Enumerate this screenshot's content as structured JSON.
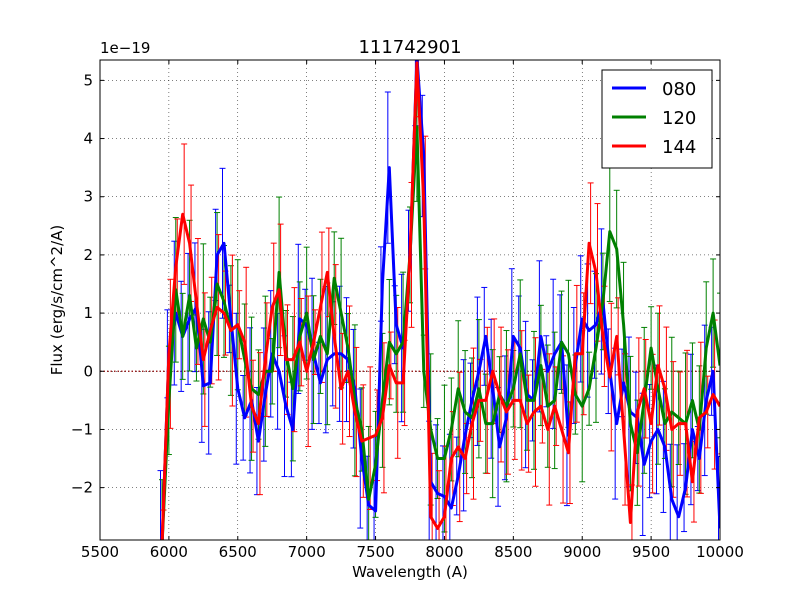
{
  "chart_data": {
    "type": "line",
    "title": "111742901",
    "xlabel": "Wavelength (A)",
    "ylabel": "Flux (erg/s/cm^2/A)",
    "offset_text": "1e−19",
    "xlim": [
      5500,
      10000
    ],
    "ylim": [
      -2.9,
      5.35
    ],
    "xticks": [
      5500,
      6000,
      6500,
      7000,
      7500,
      8000,
      8500,
      9000,
      9500,
      10000
    ],
    "yticks": [
      -2,
      -1,
      0,
      1,
      2,
      3,
      4,
      5
    ],
    "grid": true,
    "legend_position": "top-right",
    "reference_line": {
      "y": 0,
      "color": "#8b0000",
      "style": "dotted"
    },
    "series": [
      {
        "name": "080",
        "color": "#0000ff",
        "x": [
          5950,
          6000,
          6050,
          6100,
          6150,
          6200,
          6250,
          6300,
          6350,
          6400,
          6450,
          6500,
          6550,
          6600,
          6650,
          6700,
          6750,
          6800,
          6850,
          6900,
          6950,
          7000,
          7050,
          7100,
          7150,
          7200,
          7250,
          7300,
          7350,
          7400,
          7450,
          7500,
          7550,
          7600,
          7650,
          7700,
          7750,
          7800,
          7850,
          7900,
          7950,
          8000,
          8050,
          8100,
          8150,
          8200,
          8250,
          8300,
          8350,
          8400,
          8450,
          8500,
          8550,
          8600,
          8650,
          8700,
          8750,
          8800,
          8850,
          8900,
          8950,
          9000,
          9050,
          9100,
          9150,
          9200,
          9250,
          9300,
          9350,
          9400,
          9450,
          9500,
          9550,
          9600,
          9650,
          9700,
          9750,
          9800,
          9850,
          9900,
          9950,
          10000
        ],
        "y": [
          -3.0,
          0.3,
          1.0,
          0.6,
          0.9,
          1.1,
          -0.25,
          -0.2,
          2.0,
          2.2,
          0.9,
          -0.3,
          -0.8,
          -0.5,
          -1.2,
          -0.4,
          0.3,
          0.0,
          -0.6,
          -1.0,
          0.9,
          0.8,
          0.3,
          -0.2,
          0.2,
          0.3,
          0.3,
          0.2,
          -0.3,
          -1.5,
          -2.3,
          -2.4,
          1.5,
          3.5,
          0.8,
          0.4,
          1.9,
          5.4,
          3.7,
          -1.9,
          -2.1,
          -2.15,
          -2.35,
          -1.8,
          -1.1,
          -0.5,
          0.0,
          0.6,
          -0.3,
          -1.3,
          -0.8,
          0.6,
          0.4,
          -0.4,
          -0.5,
          0.6,
          0.0,
          0.3,
          0.5,
          -1.1,
          0.1,
          0.9,
          0.7,
          0.8,
          1.2,
          0.0,
          -0.9,
          -0.2,
          -0.7,
          -0.8,
          -1.6,
          -1.2,
          -1.0,
          -1.3,
          -2.2,
          -2.5,
          -2.0,
          -1.0,
          -1.5,
          -0.5,
          0.0,
          -2.7
        ]
      },
      {
        "name": "120",
        "color": "#008000",
        "x": [
          5950,
          6000,
          6050,
          6100,
          6150,
          6200,
          6250,
          6300,
          6350,
          6400,
          6450,
          6500,
          6550,
          6600,
          6650,
          6700,
          6750,
          6800,
          6850,
          6900,
          6950,
          7000,
          7050,
          7100,
          7150,
          7200,
          7250,
          7300,
          7350,
          7400,
          7450,
          7500,
          7550,
          7600,
          7650,
          7700,
          7750,
          7800,
          7850,
          7900,
          7950,
          8000,
          8050,
          8100,
          8150,
          8200,
          8250,
          8300,
          8350,
          8400,
          8450,
          8500,
          8550,
          8600,
          8650,
          8700,
          8750,
          8800,
          8850,
          8900,
          8950,
          9000,
          9050,
          9100,
          9150,
          9200,
          9250,
          9300,
          9350,
          9400,
          9450,
          9500,
          9550,
          9600,
          9650,
          9700,
          9750,
          9800,
          9850,
          9900,
          9950,
          10000
        ],
        "y": [
          -3.0,
          -0.5,
          1.4,
          0.6,
          1.3,
          0.4,
          0.9,
          0.5,
          1.5,
          1.2,
          0.7,
          0.8,
          0.2,
          -0.3,
          -0.4,
          0.0,
          0.0,
          1.7,
          0.3,
          -0.3,
          0.6,
          1.0,
          0.2,
          0.6,
          0.3,
          1.6,
          1.0,
          0.4,
          -0.5,
          -1.0,
          -2.2,
          -1.6,
          -0.5,
          0.5,
          0.3,
          0.5,
          2.0,
          4.2,
          0.0,
          -1.0,
          -1.5,
          -1.5,
          -1.0,
          -0.3,
          -0.7,
          -0.8,
          -0.3,
          -0.9,
          -0.9,
          -0.4,
          -0.6,
          -0.3,
          0.3,
          -0.5,
          -0.5,
          0.1,
          -0.6,
          -0.5,
          0.5,
          0.3,
          -0.4,
          -0.6,
          -0.3,
          0.4,
          1.2,
          2.4,
          2.1,
          0.8,
          -0.9,
          -1.4,
          -0.5,
          0.4,
          -0.3,
          -0.9,
          -0.7,
          -0.8,
          -0.9,
          -0.5,
          -1.0,
          0.4,
          1.0,
          0.1
        ]
      },
      {
        "name": "144",
        "color": "#ff0000",
        "x": [
          5950,
          6000,
          6050,
          6100,
          6150,
          6200,
          6250,
          6300,
          6350,
          6400,
          6450,
          6500,
          6550,
          6600,
          6650,
          6700,
          6750,
          6800,
          6850,
          6900,
          6950,
          7000,
          7050,
          7100,
          7150,
          7200,
          7250,
          7300,
          7350,
          7400,
          7450,
          7500,
          7550,
          7600,
          7650,
          7700,
          7750,
          7800,
          7850,
          7900,
          7950,
          8000,
          8050,
          8100,
          8150,
          8200,
          8250,
          8300,
          8350,
          8400,
          8450,
          8500,
          8550,
          8600,
          8650,
          8700,
          8750,
          8800,
          8850,
          8900,
          8950,
          9000,
          9050,
          9100,
          9150,
          9200,
          9250,
          9300,
          9350,
          9400,
          9450,
          9500,
          9550,
          9600,
          9650,
          9700,
          9750,
          9800,
          9850,
          9900,
          9950,
          10000
        ],
        "y": [
          -3.0,
          0.3,
          1.8,
          2.7,
          2.2,
          1.2,
          0.2,
          0.7,
          1.1,
          1.0,
          0.7,
          0.8,
          0.5,
          -0.6,
          -0.9,
          0.2,
          1.1,
          1.4,
          0.2,
          0.2,
          0.5,
          0.0,
          0.5,
          1.1,
          1.7,
          0.6,
          -0.3,
          0.0,
          -0.7,
          -1.2,
          -1.15,
          -1.1,
          -0.8,
          0.1,
          -0.2,
          -0.2,
          2.0,
          5.3,
          2.9,
          -2.5,
          -2.7,
          -2.5,
          -1.5,
          -1.3,
          -1.5,
          -0.9,
          -0.5,
          -0.5,
          0.0,
          -0.4,
          -0.7,
          -0.5,
          -0.5,
          -0.9,
          -0.7,
          -0.6,
          -1.0,
          -0.6,
          -1.0,
          -1.4,
          0.3,
          0.3,
          2.2,
          1.7,
          0.6,
          -0.1,
          0.6,
          -1.0,
          -2.6,
          -0.7,
          -0.3,
          -0.9,
          0.1,
          -0.3,
          -1.0,
          -0.9,
          -0.9,
          -1.9,
          -0.8,
          -0.7,
          -0.4,
          -0.6
        ]
      }
    ]
  }
}
